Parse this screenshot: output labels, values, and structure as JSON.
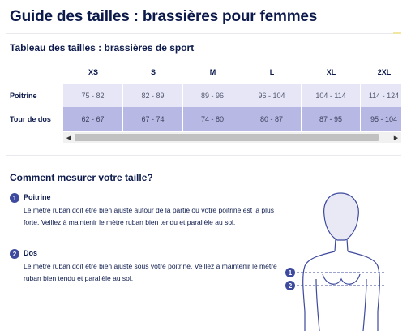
{
  "page": {
    "title": "Guide des tailles : brassières pour femmes"
  },
  "table_section": {
    "title": "Tableau des tailles : brassières de sport"
  },
  "size_table": {
    "sizes": [
      "XS",
      "S",
      "M",
      "L",
      "XL",
      "2XL"
    ],
    "rows": [
      {
        "label": "Poitrine",
        "values": [
          "75 - 82",
          "82 - 89",
          "89 - 96",
          "96 - 104",
          "104 - 114",
          "114 - 124"
        ]
      },
      {
        "label": "Tour de dos",
        "values": [
          "62 - 67",
          "67 - 74",
          "74 - 80",
          "80 - 87",
          "87 - 95",
          "95 - 104"
        ]
      }
    ]
  },
  "scrollbar": {
    "left_arrow": "◀",
    "right_arrow": "▶"
  },
  "measure_section": {
    "title": "Comment mesurer votre taille?",
    "steps": [
      {
        "number": "1",
        "title": "Poitrine",
        "text": "Le mètre ruban doit être bien ajusté autour de la partie où votre poitrine est la plus forte. Veillez à maintenir le mètre ruban bien tendu et parallèle au sol."
      },
      {
        "number": "2",
        "title": "Dos",
        "text": "Le mètre ruban doit être bien ajusté sous votre poitrine. Veillez à maintenir le mètre ruban bien tendu et parallèle au sol."
      }
    ]
  },
  "figure": {
    "markers": [
      "1",
      "2"
    ]
  },
  "colors": {
    "navy": "#0c1a4b",
    "row_light": "#e6e6f6",
    "row_dark": "#b8b8e4",
    "badge": "#3d4a9e"
  }
}
